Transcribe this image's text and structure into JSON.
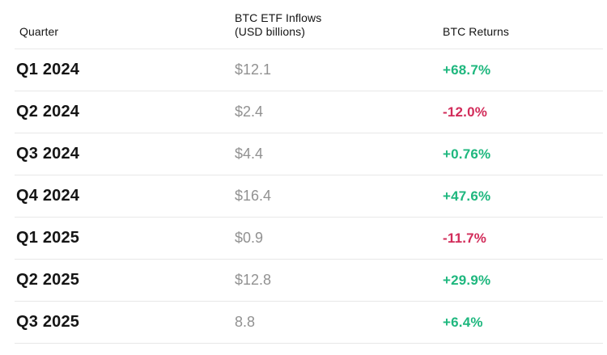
{
  "chart_data": {
    "type": "table",
    "columns": [
      {
        "id": "quarter",
        "label": "Quarter"
      },
      {
        "id": "inflows",
        "label": "BTC ETF Inflows",
        "label_line2": "(USD billions)"
      },
      {
        "id": "returns",
        "label": "BTC Returns"
      }
    ],
    "rows": [
      {
        "quarter": "Q1 2024",
        "inflows": "$12.1",
        "returns": "+68.7%",
        "direction": "positive"
      },
      {
        "quarter": "Q2 2024",
        "inflows": "$2.4",
        "returns": "-12.0%",
        "direction": "negative"
      },
      {
        "quarter": "Q3 2024",
        "inflows": "$4.4",
        "returns": "+0.76%",
        "direction": "positive"
      },
      {
        "quarter": "Q4 2024",
        "inflows": "$16.4",
        "returns": "+47.6%",
        "direction": "positive"
      },
      {
        "quarter": "Q1 2025",
        "inflows": "$0.9",
        "returns": "-11.7%",
        "direction": "negative"
      },
      {
        "quarter": "Q2 2025",
        "inflows": "$12.8",
        "returns": "+29.9%",
        "direction": "positive"
      },
      {
        "quarter": "Q3 2025",
        "inflows": "8.8",
        "returns": "+6.4%",
        "direction": "positive"
      }
    ]
  },
  "colors": {
    "positive": "#1eb77e",
    "negative": "#d22c5a",
    "row_label": "#151515",
    "header_text": "#141414",
    "inflow_value": "#919191",
    "divider": "#e8e8e8",
    "background": "#ffffff"
  }
}
